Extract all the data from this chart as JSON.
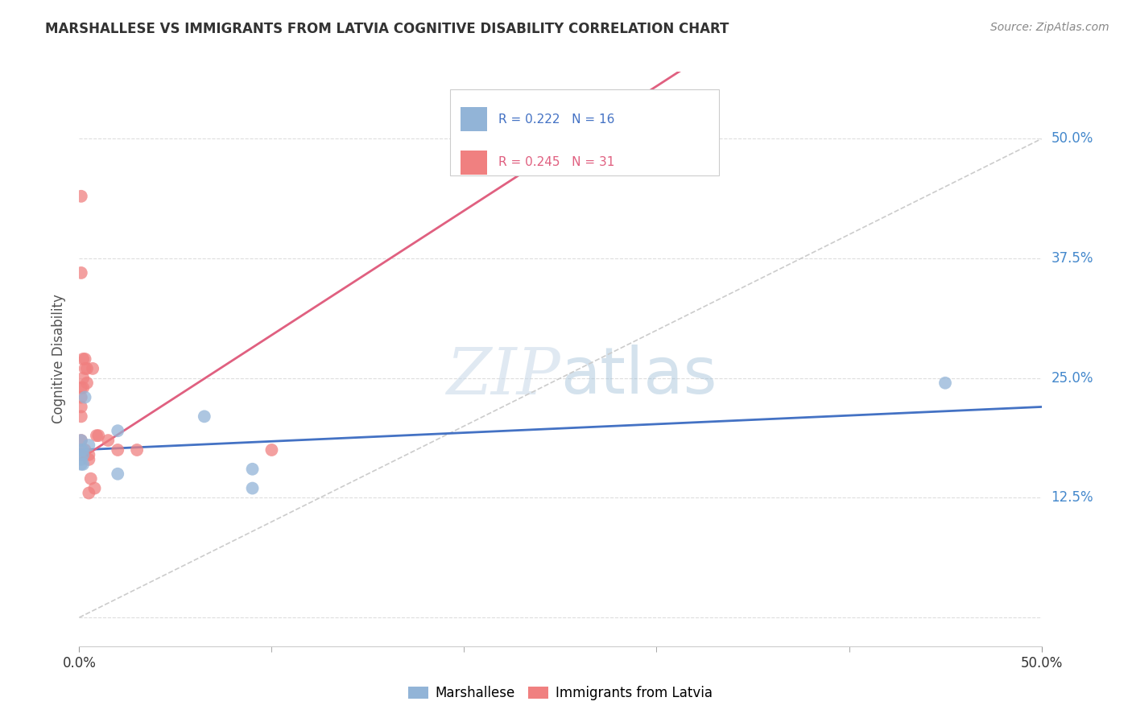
{
  "title": "MARSHALLESE VS IMMIGRANTS FROM LATVIA COGNITIVE DISABILITY CORRELATION CHART",
  "source": "Source: ZipAtlas.com",
  "ylabel": "Cognitive Disability",
  "watermark": "ZIPatlas",
  "xlim": [
    0.0,
    0.5
  ],
  "ylim": [
    -0.03,
    0.57
  ],
  "yticks": [
    0.0,
    0.125,
    0.25,
    0.375,
    0.5
  ],
  "blue_color": "#92B4D7",
  "pink_color": "#F08080",
  "blue_line_color": "#4472C4",
  "pink_line_color": "#E06080",
  "diag_color": "#CCCCCC",
  "marshallese_x": [
    0.001,
    0.001,
    0.001,
    0.001,
    0.002,
    0.002,
    0.002,
    0.003,
    0.005,
    0.02,
    0.02,
    0.065,
    0.09,
    0.09,
    0.45
  ],
  "marshallese_y": [
    0.185,
    0.175,
    0.165,
    0.16,
    0.175,
    0.17,
    0.16,
    0.23,
    0.18,
    0.195,
    0.15,
    0.21,
    0.135,
    0.155,
    0.245
  ],
  "latvia_x": [
    0.001,
    0.001,
    0.001,
    0.001,
    0.001,
    0.001,
    0.001,
    0.001,
    0.002,
    0.002,
    0.002,
    0.003,
    0.003,
    0.003,
    0.004,
    0.004,
    0.005,
    0.005,
    0.005,
    0.006,
    0.007,
    0.008,
    0.009,
    0.01,
    0.015,
    0.02,
    0.03,
    0.1
  ],
  "latvia_y": [
    0.44,
    0.36,
    0.24,
    0.23,
    0.22,
    0.21,
    0.185,
    0.17,
    0.27,
    0.25,
    0.24,
    0.27,
    0.26,
    0.175,
    0.26,
    0.245,
    0.17,
    0.165,
    0.13,
    0.145,
    0.26,
    0.135,
    0.19,
    0.19,
    0.185,
    0.175,
    0.175,
    0.175
  ]
}
